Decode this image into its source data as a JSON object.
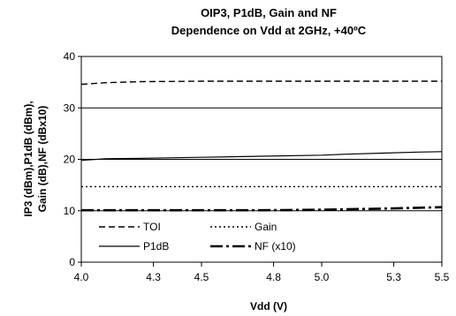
{
  "chart_data": {
    "type": "line",
    "title": "OIP3, P1dB, Gain and NF",
    "subtitle": "Dependence on Vdd at 2GHz, +40ºC",
    "xlabel": "Vdd (V)",
    "ylabel_line1": "IP3 (dBm),P1dB (dBm),",
    "ylabel_line2": "Gain (dB),NF (dBx10)",
    "xlim": [
      4.0,
      5.5
    ],
    "ylim": [
      0,
      40
    ],
    "xticks": [
      "4.0",
      "4.3",
      "4.5",
      "4.8",
      "5.0",
      "5.3",
      "5.5"
    ],
    "yticks": [
      "0",
      "10",
      "20",
      "30",
      "40"
    ],
    "grid": "horizontal",
    "legend_position": "bottom-left",
    "series": [
      {
        "name": "TOI",
        "style": "dashed",
        "x": [
          4.0,
          4.1,
          4.25,
          4.5,
          4.75,
          5.0,
          5.25,
          5.5
        ],
        "y": [
          34.6,
          34.9,
          35.1,
          35.2,
          35.2,
          35.2,
          35.2,
          35.2
        ]
      },
      {
        "name": "Gain",
        "style": "dotted",
        "x": [
          4.0,
          4.25,
          4.5,
          4.75,
          5.0,
          5.25,
          5.5
        ],
        "y": [
          14.7,
          14.7,
          14.7,
          14.7,
          14.7,
          14.7,
          14.7
        ]
      },
      {
        "name": "P1dB",
        "style": "solid",
        "x": [
          4.0,
          4.1,
          4.25,
          4.5,
          4.75,
          5.0,
          5.1,
          5.25,
          5.4,
          5.5
        ],
        "y": [
          19.8,
          20.1,
          20.2,
          20.4,
          20.6,
          20.8,
          21.0,
          21.2,
          21.4,
          21.5
        ]
      },
      {
        "name": "NF (x10)",
        "style": "dashdot",
        "x": [
          4.0,
          4.25,
          4.5,
          4.75,
          5.0,
          5.25,
          5.5
        ],
        "y": [
          10.1,
          10.1,
          10.1,
          10.1,
          10.2,
          10.4,
          10.7
        ]
      }
    ],
    "colors": {
      "line": "#000000",
      "background": "#ffffff",
      "grid": "#000000"
    }
  }
}
